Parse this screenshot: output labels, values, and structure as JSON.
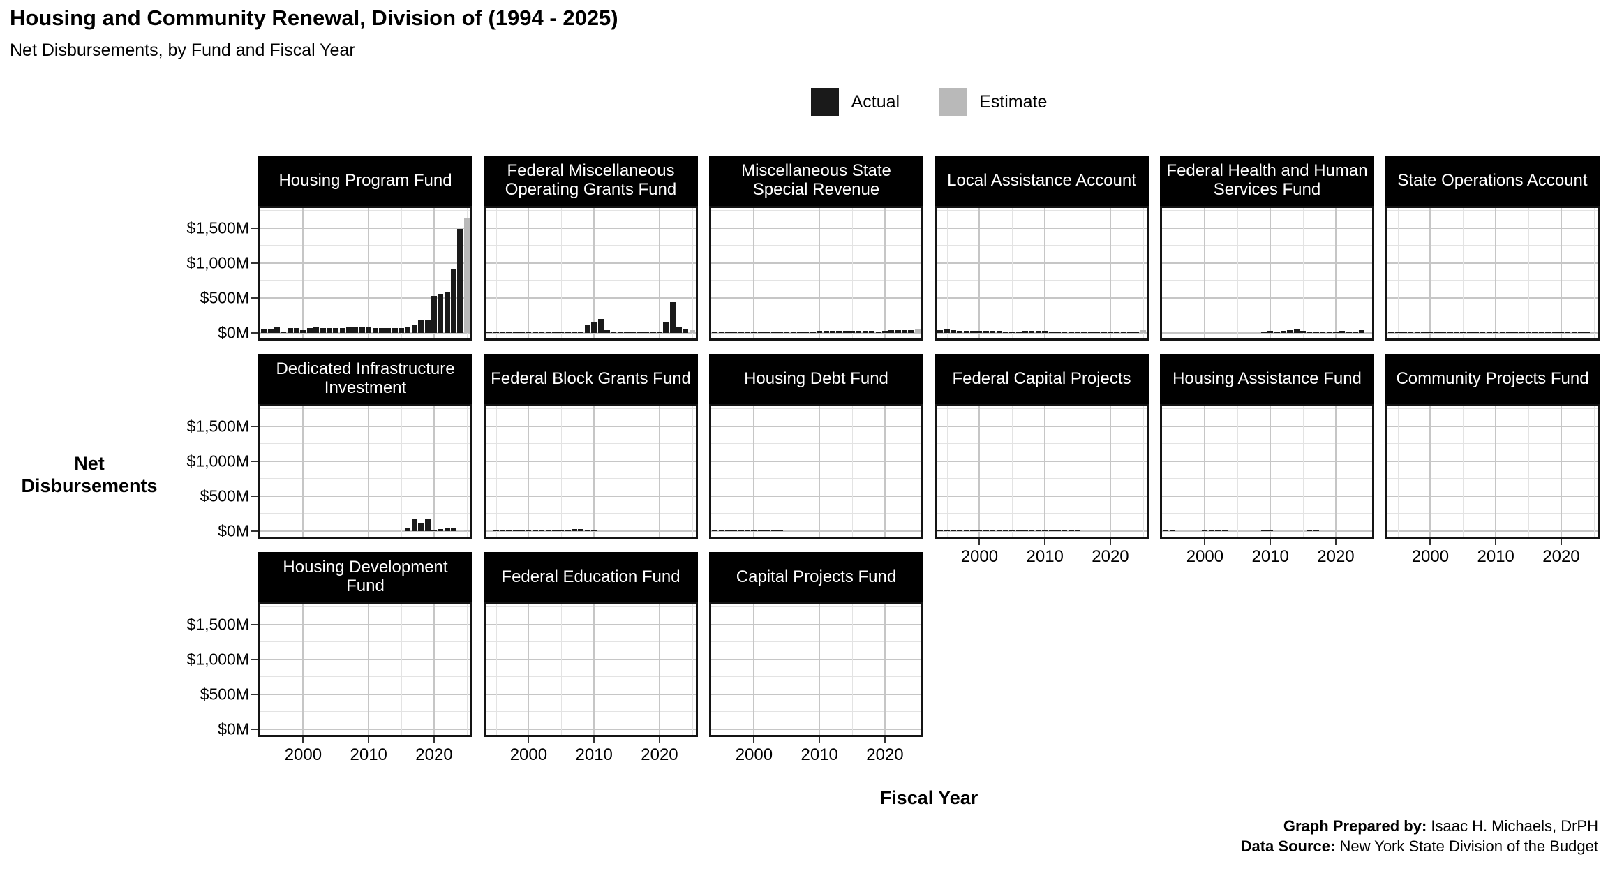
{
  "title": "Housing and Community Renewal, Division of (1994 - 2025)",
  "subtitle": "Net Disbursements, by Fund and Fiscal Year",
  "legend": {
    "items": [
      {
        "label": "Actual",
        "color": "#1a1a1a"
      },
      {
        "label": "Estimate",
        "color": "#b9b9b9"
      }
    ]
  },
  "y_axis": {
    "label": "Net Disbursements",
    "ticks": [
      {
        "label": "$1,500M",
        "value": 1500
      },
      {
        "label": "$1,000M",
        "value": 1000
      },
      {
        "label": "$500M",
        "value": 500
      },
      {
        "label": "$0M",
        "value": 0
      }
    ]
  },
  "x_axis": {
    "label": "Fiscal Year",
    "ticks": [
      2000,
      2010,
      2020
    ]
  },
  "footer": {
    "prepared_by_label": "Graph Prepared by:",
    "prepared_by": " Isaac H. Michaels, DrPH",
    "source_label": "Data Source:",
    "source": " New York State Division of the Budget"
  },
  "chart_data": {
    "type": "bar",
    "title": "Housing and Community Renewal, Division of (1994 - 2025)",
    "subtitle": "Net Disbursements, by Fund and Fiscal Year",
    "units": "$M",
    "xlabel": "Fiscal Year",
    "ylabel": "Net Disbursements",
    "ylim": [
      0,
      1830
    ],
    "x_range": [
      1994,
      2025
    ],
    "estimate_year": 2025,
    "grid": {
      "major_y": [
        0,
        500,
        1000,
        1500
      ],
      "minor_y": [
        250,
        750,
        1250,
        1750
      ],
      "major_x": [
        2000,
        2010,
        2020
      ],
      "minor_x": [
        1995,
        2005,
        2015,
        2025
      ]
    },
    "x": [
      1994,
      1995,
      1996,
      1997,
      1998,
      1999,
      2000,
      2001,
      2002,
      2003,
      2004,
      2005,
      2006,
      2007,
      2008,
      2009,
      2010,
      2011,
      2012,
      2013,
      2014,
      2015,
      2016,
      2017,
      2018,
      2019,
      2020,
      2021,
      2022,
      2023,
      2024,
      2025
    ],
    "panels": [
      {
        "label": "Housing Program Fund",
        "values": [
          55,
          65,
          90,
          25,
          75,
          75,
          40,
          70,
          85,
          70,
          70,
          72,
          72,
          80,
          90,
          90,
          90,
          72,
          68,
          72,
          72,
          75,
          95,
          125,
          185,
          190,
          530,
          560,
          590,
          910,
          1490,
          1640
        ]
      },
      {
        "label": "Federal Miscellaneous Operating Grants Fund",
        "values": [
          3,
          8,
          5,
          8,
          12,
          12,
          12,
          10,
          10,
          10,
          12,
          15,
          15,
          15,
          18,
          110,
          155,
          200,
          45,
          12,
          10,
          10,
          10,
          10,
          10,
          12,
          15,
          155,
          440,
          95,
          65,
          45
        ]
      },
      {
        "label": "Miscellaneous State Special Revenue",
        "values": [
          8,
          8,
          8,
          8,
          8,
          8,
          10,
          18,
          15,
          22,
          18,
          20,
          22,
          22,
          22,
          25,
          30,
          30,
          30,
          30,
          30,
          30,
          28,
          30,
          30,
          25,
          35,
          40,
          38,
          38,
          45,
          55
        ]
      },
      {
        "label": "Local Assistance Account",
        "values": [
          45,
          50,
          45,
          32,
          35,
          32,
          32,
          35,
          28,
          32,
          25,
          22,
          25,
          28,
          32,
          32,
          28,
          22,
          25,
          22,
          10,
          4,
          4,
          4,
          4,
          4,
          15,
          22,
          3,
          18,
          18,
          40
        ]
      },
      {
        "label": "Federal Health and Human Services Fund",
        "values": [
          0,
          0,
          0,
          0,
          0,
          0,
          0,
          0,
          0,
          0,
          0,
          0,
          0,
          0,
          0,
          12,
          35,
          10,
          28,
          38,
          55,
          30,
          22,
          20,
          20,
          22,
          25,
          32,
          22,
          22,
          38,
          12
        ]
      },
      {
        "label": "State Operations Account",
        "values": [
          18,
          18,
          18,
          12,
          15,
          18,
          18,
          12,
          12,
          12,
          12,
          12,
          10,
          12,
          12,
          12,
          12,
          5,
          5,
          6,
          3,
          2,
          2,
          2,
          2,
          2,
          2,
          2,
          2,
          2,
          2,
          3
        ]
      },
      {
        "label": "Dedicated Infrastructure Investment",
        "values": [
          0,
          0,
          0,
          0,
          0,
          0,
          0,
          0,
          0,
          0,
          0,
          0,
          0,
          0,
          0,
          0,
          0,
          0,
          0,
          0,
          0,
          0,
          45,
          170,
          110,
          170,
          15,
          30,
          55,
          38,
          0,
          18
        ]
      },
      {
        "label": "Federal Block Grants Fund",
        "values": [
          0,
          3,
          8,
          10,
          4,
          6,
          10,
          15,
          18,
          15,
          15,
          14,
          12,
          28,
          30,
          12,
          5,
          0,
          0,
          0,
          0,
          0,
          0,
          0,
          0,
          0,
          0,
          0,
          0,
          0,
          0,
          0
        ]
      },
      {
        "label": "Housing Debt Fund",
        "values": [
          18,
          20,
          18,
          18,
          18,
          20,
          18,
          15,
          10,
          14,
          10,
          0,
          0,
          0,
          0,
          0,
          0,
          0,
          0,
          0,
          0,
          0,
          0,
          0,
          0,
          0,
          0,
          0,
          0,
          0,
          0,
          0
        ]
      },
      {
        "label": "Federal Capital Projects",
        "values": [
          6,
          6,
          3,
          2,
          1,
          1,
          1,
          1,
          1,
          1,
          1,
          1,
          1,
          1,
          2,
          2,
          1,
          1,
          1,
          1,
          1,
          1,
          0,
          0,
          0,
          0,
          0,
          0,
          0,
          0,
          0,
          0
        ]
      },
      {
        "label": "Housing Assistance Fund",
        "values": [
          8,
          2,
          0,
          0,
          0,
          0,
          2,
          1,
          1,
          1,
          0,
          0,
          0,
          0,
          0,
          3,
          4,
          0,
          0,
          0,
          0,
          0,
          1,
          1,
          0,
          0,
          0,
          0,
          0,
          0,
          0,
          0
        ]
      },
      {
        "label": "Community Projects Fund",
        "values": [
          0,
          0,
          0,
          0,
          0,
          0,
          0,
          0,
          0,
          0,
          0,
          0,
          0,
          0,
          0,
          0,
          0,
          0,
          0,
          0,
          0,
          0,
          0,
          0,
          0,
          0,
          0,
          0,
          0,
          0,
          0,
          0
        ]
      },
      {
        "label": "Housing Development Fund",
        "values": [
          3,
          0,
          0,
          0,
          0,
          0,
          0,
          0,
          0,
          0,
          0,
          0,
          0,
          0,
          0,
          0,
          0,
          0,
          0,
          0,
          0,
          0,
          0,
          0,
          0,
          0,
          0,
          2,
          2,
          0,
          0,
          0
        ]
      },
      {
        "label": "Federal Education Fund",
        "values": [
          0,
          0,
          0,
          0,
          0,
          0,
          0,
          0,
          0,
          0,
          0,
          0,
          0,
          0,
          0,
          0,
          3,
          0,
          0,
          0,
          0,
          0,
          0,
          0,
          0,
          0,
          0,
          0,
          0,
          0,
          0,
          0
        ]
      },
      {
        "label": "Capital Projects Fund",
        "values": [
          2,
          1,
          0,
          0,
          0,
          0,
          0,
          0,
          0,
          0,
          0,
          0,
          0,
          0,
          0,
          0,
          0,
          0,
          0,
          0,
          0,
          0,
          0,
          0,
          0,
          0,
          0,
          0,
          0,
          0,
          0,
          0
        ]
      }
    ]
  }
}
